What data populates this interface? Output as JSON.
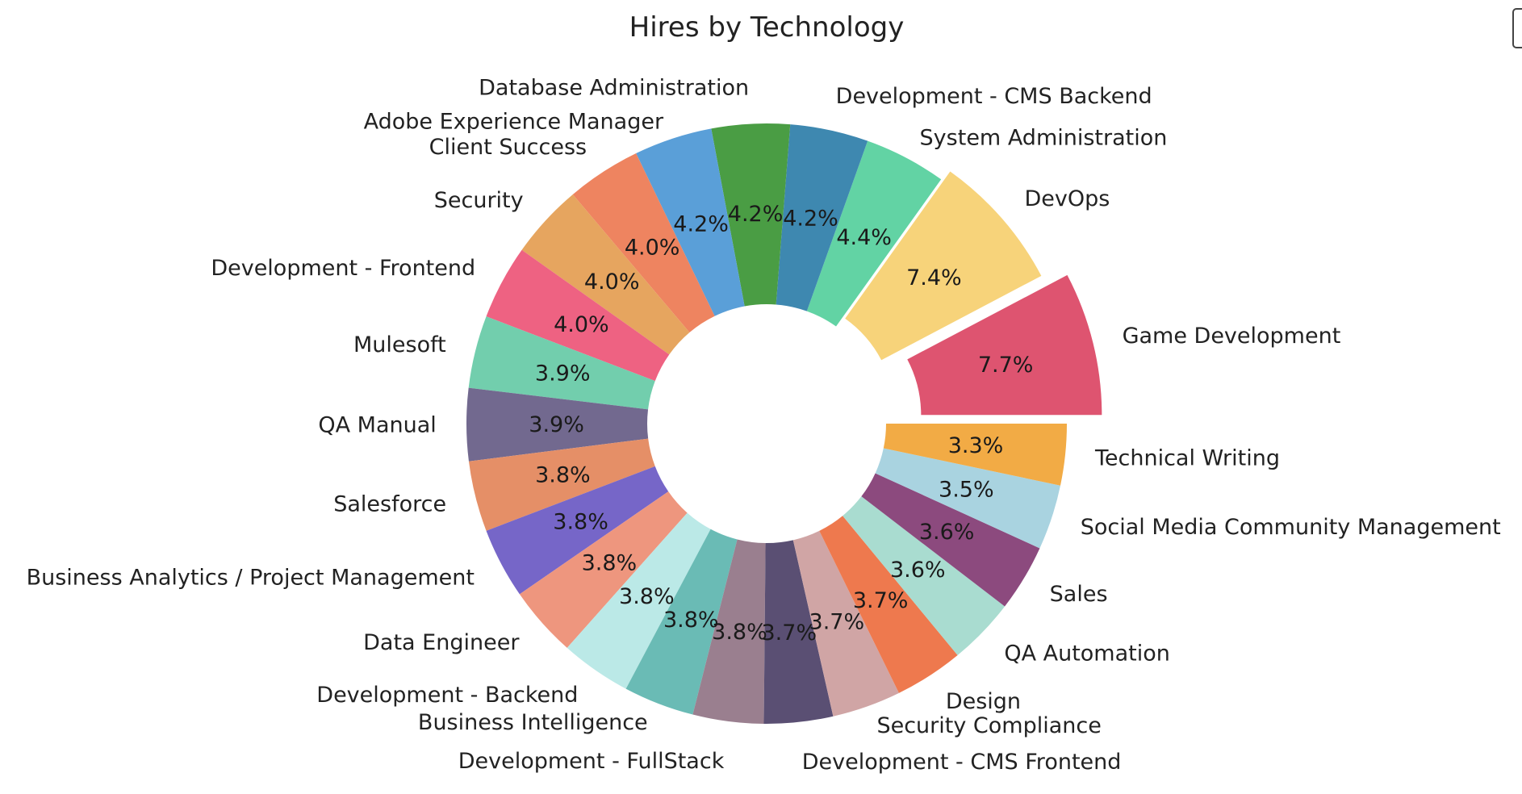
{
  "chart_data": {
    "type": "pie",
    "title": "Hires by Technology",
    "donut": true,
    "categories": [
      "Game Development",
      "DevOps",
      "System Administration",
      "Development - CMS Backend",
      "Database Administration",
      "Adobe Experience Manager",
      "Client Success",
      "Security",
      "Development - Frontend",
      "Mulesoft",
      "QA Manual",
      "Salesforce",
      "Business Analytics / Project Management",
      "Data Engineer",
      "Development - Backend",
      "Business Intelligence",
      "Development - FullStack",
      "Development - CMS Frontend",
      "Security Compliance",
      "Design",
      "QA Automation",
      "Sales",
      "Social Media Community Management",
      "Technical Writing"
    ],
    "values": [
      7.7,
      7.4,
      4.4,
      4.2,
      4.2,
      4.2,
      4.0,
      4.0,
      4.0,
      3.9,
      3.9,
      3.8,
      3.8,
      3.8,
      3.8,
      3.8,
      3.8,
      3.7,
      3.7,
      3.7,
      3.6,
      3.6,
      3.5,
      3.3
    ],
    "labels": [
      "7.7%",
      "7.4%",
      "4.4%",
      "4.2%",
      "4.2%",
      "4.2%",
      "4.0%",
      "4.0%",
      "4.0%",
      "3.9%",
      "3.9%",
      "3.8%",
      "3.8%",
      "3.8%",
      "3.8%",
      "3.8%",
      "3.8%",
      "3.7%",
      "3.7%",
      "3.7%",
      "3.6%",
      "3.6%",
      "3.5%",
      "3.3%"
    ],
    "colors": [
      "#DE5470",
      "#F7D37A",
      "#62D3A4",
      "#3E88B0",
      "#4A9D44",
      "#5A9FD8",
      "#EE8460",
      "#E6A55F",
      "#EE6282",
      "#72CEAD",
      "#72698F",
      "#E58F67",
      "#7666C8",
      "#EE967E",
      "#BBE9E7",
      "#6ABBB5",
      "#9A7F8F",
      "#5A4F73",
      "#D0A5A5",
      "#EE794E",
      "#A9DCD0",
      "#8C4A7E",
      "#A9D3E0",
      "#F2AB45"
    ],
    "explode": [
      0.12,
      0.04,
      0,
      0,
      0,
      0,
      0,
      0,
      0,
      0,
      0,
      0,
      0,
      0,
      0,
      0,
      0,
      0,
      0,
      0,
      0,
      0,
      0,
      0
    ],
    "start_angle_deg": 0,
    "direction": "counterclockwise",
    "legend": "right edge, clipped"
  }
}
